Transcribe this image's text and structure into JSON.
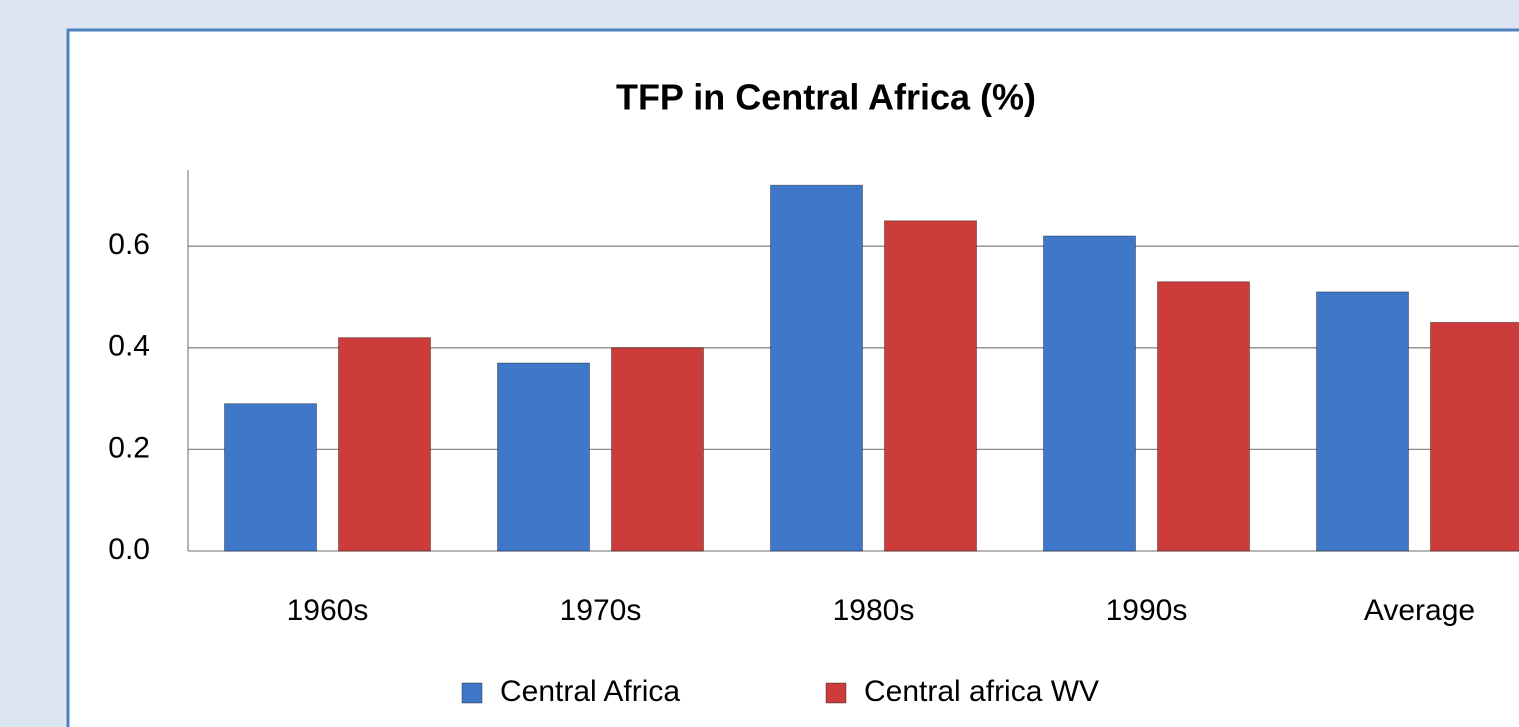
{
  "chart_data": {
    "type": "bar",
    "title": "TFP in Central Africa (%)",
    "categories": [
      "1960s",
      "1970s",
      "1980s",
      "1990s",
      "Average"
    ],
    "series": [
      {
        "name": "Central Africa",
        "color": "#3f78c8",
        "values": [
          0.29,
          0.37,
          0.72,
          0.62,
          0.51
        ]
      },
      {
        "name": "Central africa WV",
        "color": "#cc3c3a",
        "values": [
          0.42,
          0.4,
          0.65,
          0.53,
          0.45
        ]
      }
    ],
    "ylim": [
      0,
      0.75
    ],
    "yticks": [
      {
        "value": 0,
        "label": "0.0"
      },
      0.2,
      0.4,
      0.6
    ],
    "grid": true
  }
}
